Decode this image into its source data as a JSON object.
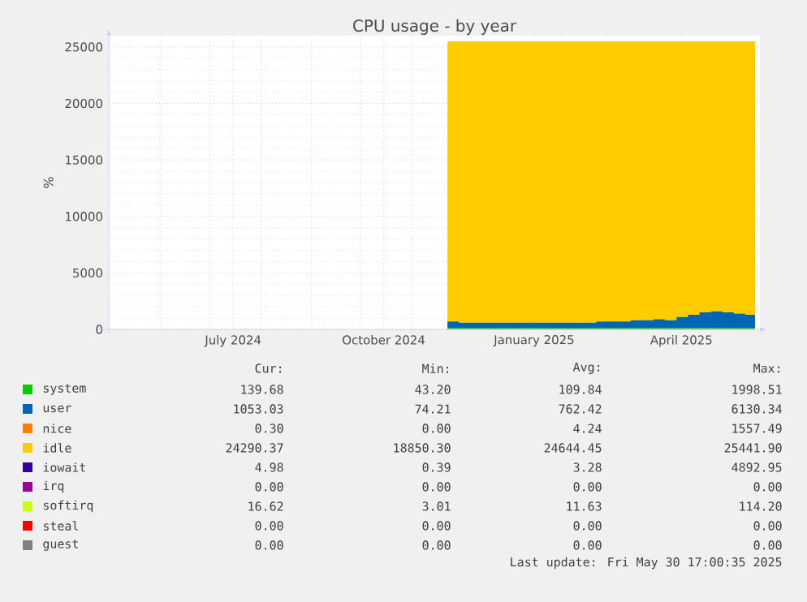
{
  "chart_data": {
    "type": "area",
    "title": "CPU usage - by year",
    "ylabel": "%",
    "stacked": true,
    "legend": "bottom",
    "grid": true,
    "x": [
      "2024-11-23",
      "2024-11-30",
      "2024-12-07",
      "2024-12-14",
      "2024-12-21",
      "2024-12-28",
      "2025-01-04",
      "2025-01-11",
      "2025-01-18",
      "2025-01-25",
      "2025-02-01",
      "2025-02-08",
      "2025-02-15",
      "2025-02-22",
      "2025-03-01",
      "2025-03-08",
      "2025-03-15",
      "2025-03-22",
      "2025-03-29",
      "2025-04-05",
      "2025-04-12",
      "2025-04-19",
      "2025-04-26",
      "2025-05-03",
      "2025-05-10",
      "2025-05-17",
      "2025-05-24",
      "2025-05-30"
    ],
    "xlim": [
      "2024-04-30",
      "2025-06-02"
    ],
    "xticks": [
      {
        "value": "2024-05-01",
        "label": null
      },
      {
        "value": "2024-06-01",
        "label": null
      },
      {
        "value": "2024-07-01",
        "label": null
      },
      {
        "value": "2024-07-15",
        "label": "July 2024"
      },
      {
        "value": "2024-08-01",
        "label": null
      },
      {
        "value": "2024-09-01",
        "label": null
      },
      {
        "value": "2024-10-01",
        "label": null
      },
      {
        "value": "2024-10-15",
        "label": "October 2024"
      },
      {
        "value": "2024-11-01",
        "label": null
      },
      {
        "value": "2024-12-01",
        "label": null
      },
      {
        "value": "2025-01-01",
        "label": null
      },
      {
        "value": "2025-01-15",
        "label": "January 2025"
      },
      {
        "value": "2025-02-01",
        "label": null
      },
      {
        "value": "2025-03-01",
        "label": null
      },
      {
        "value": "2025-04-01",
        "label": null
      },
      {
        "value": "2025-04-15",
        "label": "April 2025"
      },
      {
        "value": "2025-05-01",
        "label": null
      }
    ],
    "ylim": [
      0,
      26000
    ],
    "yticks": [
      0,
      5000,
      10000,
      15000,
      20000,
      25000
    ],
    "series": [
      {
        "name": "system",
        "color": "#00cc00",
        "values": [
          100,
          100,
          100,
          100,
          100,
          100,
          100,
          100,
          100,
          100,
          100,
          100,
          100,
          100,
          100,
          100,
          100,
          100,
          100,
          100,
          100,
          100,
          100,
          100,
          100,
          100,
          100,
          100
        ]
      },
      {
        "name": "user",
        "color": "#0066b3",
        "values": [
          600,
          500,
          500,
          500,
          500,
          500,
          500,
          500,
          500,
          500,
          500,
          500,
          500,
          600,
          600,
          600,
          700,
          700,
          800,
          700,
          1000,
          1200,
          1400,
          1500,
          1400,
          1300,
          1200,
          1100
        ]
      },
      {
        "name": "nice",
        "color": "#ff8000",
        "values": [
          null,
          null,
          null,
          null,
          null,
          null,
          null,
          null,
          null,
          null,
          null,
          null,
          null,
          null,
          null,
          null,
          null,
          null,
          null,
          null,
          null,
          null,
          null,
          null,
          null,
          null,
          null,
          null
        ]
      },
      {
        "name": "idle",
        "color": "#ffcc00",
        "values": [
          24800,
          24900,
          24900,
          24900,
          24900,
          24900,
          24900,
          24900,
          24900,
          24900,
          24900,
          24900,
          24900,
          24800,
          24800,
          24800,
          24700,
          24700,
          24600,
          24700,
          24400,
          24200,
          24000,
          23900,
          24000,
          24100,
          24200,
          24300
        ]
      },
      {
        "name": "iowait",
        "color": "#330099",
        "values": [
          null,
          null,
          null,
          null,
          null,
          null,
          null,
          null,
          null,
          null,
          null,
          null,
          null,
          null,
          null,
          null,
          null,
          null,
          null,
          null,
          null,
          null,
          null,
          null,
          null,
          null,
          null,
          null
        ]
      },
      {
        "name": "irq",
        "color": "#990099",
        "values": [
          null,
          null,
          null,
          null,
          null,
          null,
          null,
          null,
          null,
          null,
          null,
          null,
          null,
          null,
          null,
          null,
          null,
          null,
          null,
          null,
          null,
          null,
          null,
          null,
          null,
          null,
          null,
          null
        ]
      },
      {
        "name": "softirq",
        "color": "#ccff00",
        "values": [
          null,
          null,
          null,
          null,
          null,
          null,
          null,
          null,
          null,
          null,
          null,
          null,
          null,
          null,
          null,
          null,
          null,
          null,
          null,
          null,
          null,
          null,
          null,
          null,
          null,
          null,
          null,
          null
        ]
      },
      {
        "name": "steal",
        "color": "#ff0000",
        "values": [
          null,
          null,
          null,
          null,
          null,
          null,
          null,
          null,
          null,
          null,
          null,
          null,
          null,
          null,
          null,
          null,
          null,
          null,
          null,
          null,
          null,
          null,
          null,
          null,
          null,
          null,
          null,
          null
        ]
      },
      {
        "name": "guest",
        "color": "#808080",
        "values": [
          null,
          null,
          null,
          null,
          null,
          null,
          null,
          null,
          null,
          null,
          null,
          null,
          null,
          null,
          null,
          null,
          null,
          null,
          null,
          null,
          null,
          null,
          null,
          null,
          null,
          null,
          null,
          null
        ]
      }
    ],
    "annotations": [
      "Cur:",
      "Min:",
      "Avg:",
      "Max:",
      "139.68",
      "43.20",
      "109.84",
      "1998.51",
      "1053.03",
      "74.21",
      "762.42",
      "6130.34",
      "0.30",
      "0.00",
      "4.24",
      "1557.49",
      "24290.37",
      "18850.30",
      "24644.45",
      "25441.90",
      "4.98",
      "0.39",
      "3.28",
      "4892.95",
      "0.00",
      "0.00",
      "0.00",
      "0.00",
      "16.62",
      "3.01",
      "11.63",
      "114.20",
      "0.00",
      "0.00",
      "0.00",
      "0.00",
      "0.00",
      "0.00",
      "0.00",
      "0.00",
      "Last update: Fri May 30 17:00:35 2025"
    ]
  }
}
